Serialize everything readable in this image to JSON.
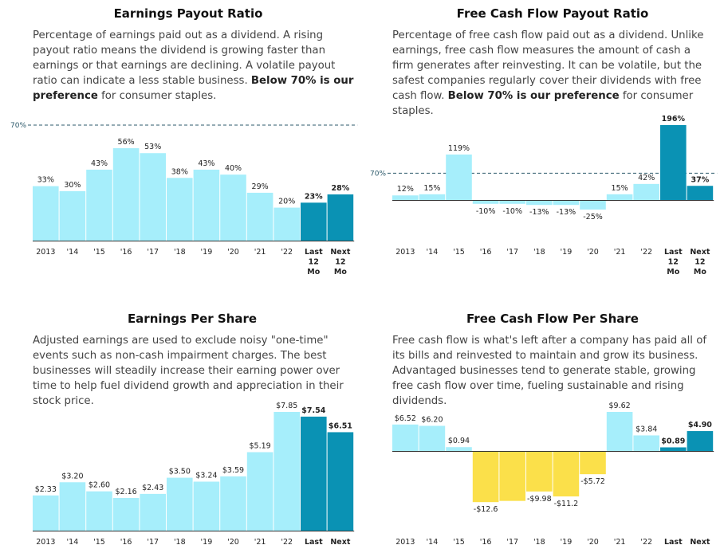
{
  "colors": {
    "light": "#a6eefb",
    "dark": "#0a92b4",
    "yellow": "#fbe04a",
    "axis": "#333333",
    "ref": "#2d5a6b"
  },
  "panels": [
    {
      "title": "Earnings Payout Ratio",
      "desc_pre": "Percentage of earnings paid out as a dividend. A rising payout ratio means the dividend is growing faster than earnings or that earnings are declining. A volatile payout ratio can indicate a less stable business. ",
      "desc_bold": "Below 70% is our preference",
      "desc_post": " for consumer staples."
    },
    {
      "title": "Free Cash Flow Payout Ratio",
      "desc_pre": "Percentage of free cash flow paid out as a dividend. Unlike earnings, free cash flow measures the amount of cash a firm generates after reinvesting. It can be volatile, but the safest companies regularly cover their dividends with free cash flow. ",
      "desc_bold": "Below 70% is our preference",
      "desc_post": " for consumer staples."
    },
    {
      "title": "Earnings Per Share",
      "desc_pre": "Adjusted earnings are used to exclude noisy \"one-time\" events such as non-cash impairment charges. The best businesses will steadily increase their earning power over time to help fuel dividend growth and appreciation in their stock price.",
      "desc_bold": "",
      "desc_post": ""
    },
    {
      "title": "Free Cash Flow Per Share",
      "desc_pre": "Free cash flow is what's left after a company has paid all of its bills and reinvested to maintain and grow its business. Advantaged businesses tend to generate stable, growing free cash flow over time, fueling sustainable and rising dividends.",
      "desc_bold": "",
      "desc_post": ""
    }
  ],
  "chart_data": [
    {
      "type": "bar",
      "title": "Earnings Payout Ratio",
      "categories": [
        "2013",
        "'14",
        "'15",
        "'16",
        "'17",
        "'18",
        "'19",
        "'20",
        "'21",
        "'22",
        "Last 12 Mo",
        "Next 12 Mo"
      ],
      "values": [
        33,
        30,
        43,
        56,
        53,
        38,
        43,
        40,
        29,
        20,
        23,
        28
      ],
      "labels": [
        "33%",
        "30%",
        "43%",
        "56%",
        "53%",
        "38%",
        "43%",
        "40%",
        "29%",
        "20%",
        "23%",
        "28%"
      ],
      "highlight": [
        false,
        false,
        false,
        false,
        false,
        false,
        false,
        false,
        false,
        false,
        true,
        true
      ],
      "reference_line": {
        "value": 70,
        "label": "70%"
      },
      "ylim": [
        0,
        70
      ]
    },
    {
      "type": "bar",
      "title": "Free Cash Flow Payout Ratio",
      "categories": [
        "2013",
        "'14",
        "'15",
        "'16",
        "'17",
        "'18",
        "'19",
        "'20",
        "'21",
        "'22",
        "Last 12 Mo",
        "Next 12 Mo"
      ],
      "values": [
        12,
        15,
        119,
        -10,
        -10,
        -13,
        -13,
        -25,
        15,
        42,
        196,
        37
      ],
      "labels": [
        "12%",
        "15%",
        "119%",
        "-10%",
        "-10%",
        "-13%",
        "-13%",
        "-25%",
        "15%",
        "42%",
        "196%",
        "37%"
      ],
      "highlight": [
        false,
        false,
        false,
        false,
        false,
        false,
        false,
        false,
        false,
        false,
        true,
        true
      ],
      "reference_line": {
        "value": 70,
        "label": "70%"
      },
      "ylim": [
        -35,
        196
      ]
    },
    {
      "type": "bar",
      "title": "Earnings Per Share",
      "categories": [
        "2013",
        "'14",
        "'15",
        "'16",
        "'17",
        "'18",
        "'19",
        "'20",
        "'21",
        "'22",
        "Last",
        "Next"
      ],
      "values": [
        2.33,
        3.2,
        2.6,
        2.16,
        2.43,
        3.5,
        3.24,
        3.59,
        5.19,
        7.85,
        7.54,
        6.51
      ],
      "labels": [
        "$2.33",
        "$3.20",
        "$2.60",
        "$2.16",
        "$2.43",
        "$3.50",
        "$3.24",
        "$3.59",
        "$5.19",
        "$7.85",
        "$7.54",
        "$6.51"
      ],
      "highlight": [
        false,
        false,
        false,
        false,
        false,
        false,
        false,
        false,
        false,
        false,
        true,
        true
      ],
      "ylim": [
        0,
        7.85
      ]
    },
    {
      "type": "bar",
      "title": "Free Cash Flow Per Share",
      "categories": [
        "2013",
        "'14",
        "'15",
        "'16",
        "'17",
        "'18",
        "'19",
        "'20",
        "'21",
        "'22",
        "Last",
        "Next"
      ],
      "values": [
        6.52,
        6.2,
        0.94,
        -12.6,
        -12.3,
        -9.98,
        -11.2,
        -5.72,
        9.62,
        3.84,
        0.89,
        4.9
      ],
      "labels": [
        "$6.52",
        "$6.20",
        "$0.94",
        "-$12.6",
        "",
        "-$9.98",
        "-$11.2",
        "-$5.72",
        "$9.62",
        "$3.84",
        "$0.89",
        "$4.90"
      ],
      "highlight": [
        false,
        false,
        false,
        false,
        false,
        false,
        false,
        false,
        false,
        false,
        true,
        true
      ],
      "ylim": [
        -12.6,
        9.62
      ]
    }
  ]
}
